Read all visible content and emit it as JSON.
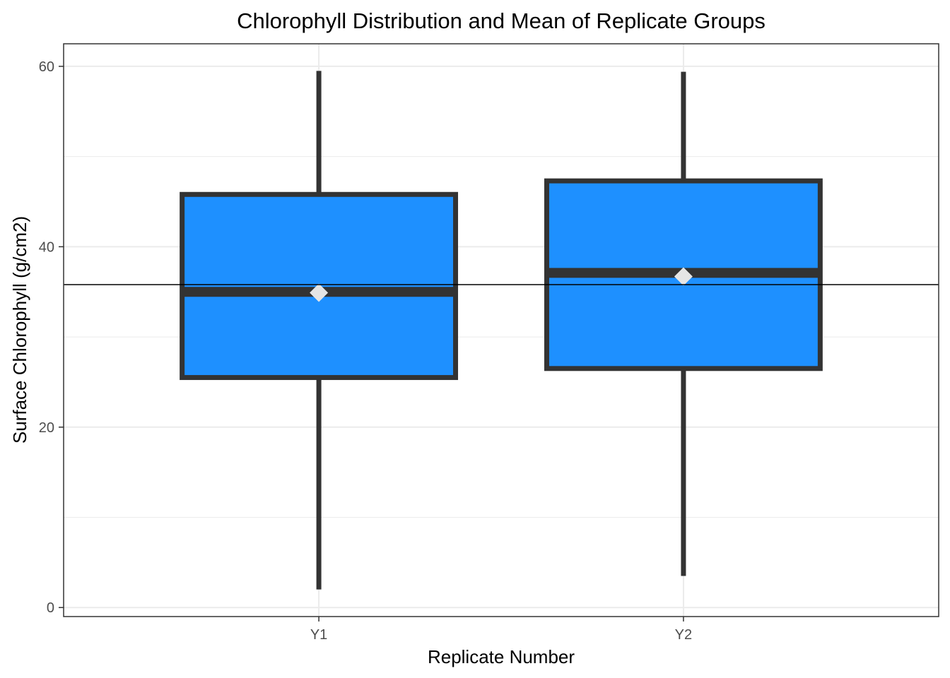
{
  "chart_data": {
    "type": "boxplot",
    "title": "Chlorophyll Distribution and Mean of Replicate Groups",
    "xlabel": "Replicate Number",
    "ylabel": "Surface Chlorophyll (g/cm2)",
    "ylim": [
      -1,
      62.5
    ],
    "y_ticks": [
      0,
      20,
      40,
      60
    ],
    "y_minor_ticks": [
      10,
      30,
      50
    ],
    "categories": [
      "Y1",
      "Y2"
    ],
    "boxes": [
      {
        "category": "Y1",
        "min": 2,
        "q1": 25.5,
        "median": 35,
        "q3": 45.8,
        "max": 59.5,
        "mean": 34.9
      },
      {
        "category": "Y2",
        "min": 3.5,
        "q1": 26.5,
        "median": 37.1,
        "q3": 47.3,
        "max": 59.4,
        "mean": 36.7
      }
    ],
    "reference_line": 35.8,
    "grid": true,
    "colors": {
      "box_fill": "#1E90FF",
      "box_outline": "#333333",
      "mean_marker": "#E5E5E5",
      "reference_line": "#000000",
      "grid": "#EBEBEB",
      "panel_border": "#333333"
    }
  }
}
